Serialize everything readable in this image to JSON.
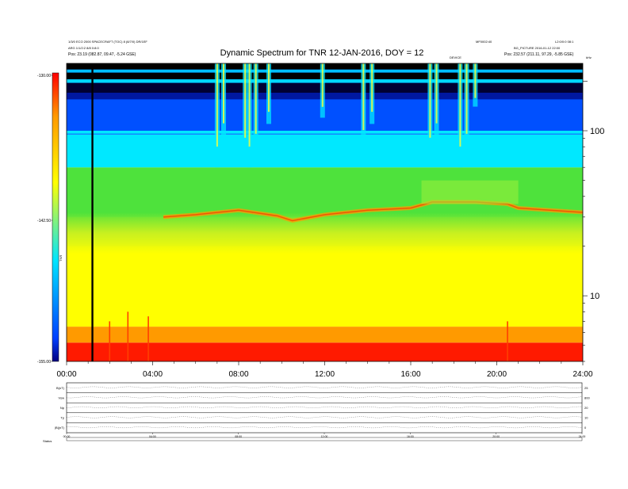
{
  "header": {
    "title": "Dynamic Spectrum for TNR 12-JAN-2016, DOY = 12",
    "left_info_1": "1/3/0 ECO 2000 SPACECRAFT (TOC) 8 (8/7/0) DR/1EF",
    "left_info_2": "ARG 1/1/2:2 8/8 0:8:0",
    "left_pos": "Pos:   23.19 (082.87, 09.47, -5.24 GSE)",
    "right_info_1": "MF0002:40",
    "right_info_2": "L2:0/0:0 08:1",
    "right_info_3": "BG_PICTURE 2016-01-12 22:00",
    "right_pos": "Pos:   232.57 (211.11, 97.29, -5.85 GSE)",
    "event_marker": "DEVICE",
    "corner_tag": "kHz"
  },
  "colors": {
    "colorbar_stops": [
      "#ff0000",
      "#ff9900",
      "#ffff00",
      "#44e044",
      "#00e5ff",
      "#0040ff",
      "#000080"
    ],
    "background": "#ffffff",
    "axis": "#000000"
  },
  "chart_data": [
    {
      "type": "heatmap",
      "title": "Dynamic Spectrum for TNR 12-JAN-2016, DOY = 12",
      "xlabel": "",
      "ylabel": "",
      "x_ticks": [
        "00:00",
        "04:00",
        "08:00",
        "12:00",
        "16:00",
        "20:00",
        "24:00"
      ],
      "x_range_hours": [
        0,
        24
      ],
      "y_scale": "log",
      "y_ticks": [
        10,
        100
      ],
      "y_range_khz": [
        4,
        256
      ],
      "colorbar": {
        "label": "TNR",
        "ticks": [
          "-130.00",
          "-142.50",
          "-155.00"
        ],
        "range_db": [
          -155,
          -130
        ]
      },
      "bands": [
        {
          "y_from_khz": 4,
          "y_to_khz": 5.2,
          "level": "red"
        },
        {
          "y_from_khz": 5.2,
          "y_to_khz": 6.5,
          "level": "orange"
        },
        {
          "y_from_khz": 6.5,
          "y_to_khz": 20,
          "level": "yellow"
        },
        {
          "y_from_khz": 20,
          "y_to_khz": 30,
          "level": "yellow-green"
        },
        {
          "y_from_khz": 30,
          "y_to_khz": 60,
          "level": "green"
        },
        {
          "y_from_khz": 60,
          "y_to_khz": 95,
          "level": "cyan"
        },
        {
          "y_from_khz": 95,
          "y_to_khz": 160,
          "level": "blue"
        },
        {
          "y_from_khz": 160,
          "y_to_khz": 256,
          "level": "dark-blue"
        }
      ],
      "data_gap_hours": 1.2
    },
    {
      "type": "line",
      "title": "",
      "stacked_panels": [
        {
          "label": "B(nT)",
          "tick_right": "25"
        },
        {
          "label": "Vsw",
          "tick_right": "800"
        },
        {
          "label": "Np",
          "tick_right": "20"
        },
        {
          "label": "Tp",
          "tick_right": "10"
        },
        {
          "label": "|B|(nT)",
          "tick_right": "0"
        }
      ],
      "x_ticks": [
        "00:00",
        "04:00",
        "08:00",
        "12:00",
        "16:00",
        "20:00",
        "24:00"
      ],
      "footer_label": "Status"
    }
  ]
}
